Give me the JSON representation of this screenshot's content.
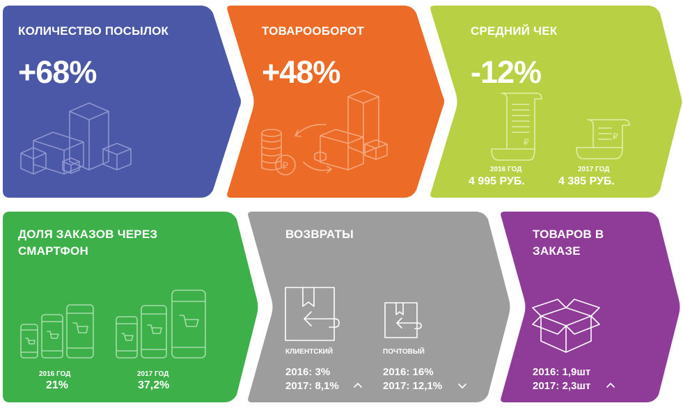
{
  "colors": {
    "parcels": "#4b57a7",
    "turnover": "#ec6b27",
    "avg_check": "#b8d044",
    "smartphone": "#3db04a",
    "returns": "#9d9d9d",
    "items": "#8e3c97"
  },
  "parcels": {
    "title": "КОЛИЧЕСТВО ПОСЫЛОК",
    "value": "+68%",
    "icon": "boxes-icon"
  },
  "turnover": {
    "title": "ТОВАРООБОРОТ",
    "value": "+48%",
    "icon": "coins-boxes-cycle-icon"
  },
  "avg_check": {
    "title": "СРЕДНИЙ ЧЕК",
    "value": "-12%",
    "y2016": {
      "label": "2016 ГОД",
      "amount": "4 995 РУБ."
    },
    "y2017": {
      "label": "2017 ГОД",
      "amount": "4 385 РУБ."
    }
  },
  "smartphone": {
    "title_line1": "ДОЛЯ ЗАКАЗОВ ЧЕРЕЗ",
    "title_line2": "СМАРТФОН",
    "y2016": {
      "label": "2016 ГОД",
      "value": "21%"
    },
    "y2017": {
      "label": "2017 ГОД",
      "value": "37,2%"
    }
  },
  "returns": {
    "title": "ВОЗВРАТЫ",
    "client": {
      "label": "КЛИЕНТСКИЙ",
      "row2016": "2016: 3%",
      "row2017": "2017: 8,1%",
      "trend": "up"
    },
    "postal": {
      "label": "ПОЧТОВЫЙ",
      "row2016": "2016: 16%",
      "row2017": "2017: 12,1%",
      "trend": "down"
    }
  },
  "items": {
    "title_line1": "ТОВАРОВ В",
    "title_line2": "ЗАКАЗЕ",
    "row2016": "2016: 1,9шт",
    "row2017": "2017: 2,3шт",
    "trend": "up"
  }
}
